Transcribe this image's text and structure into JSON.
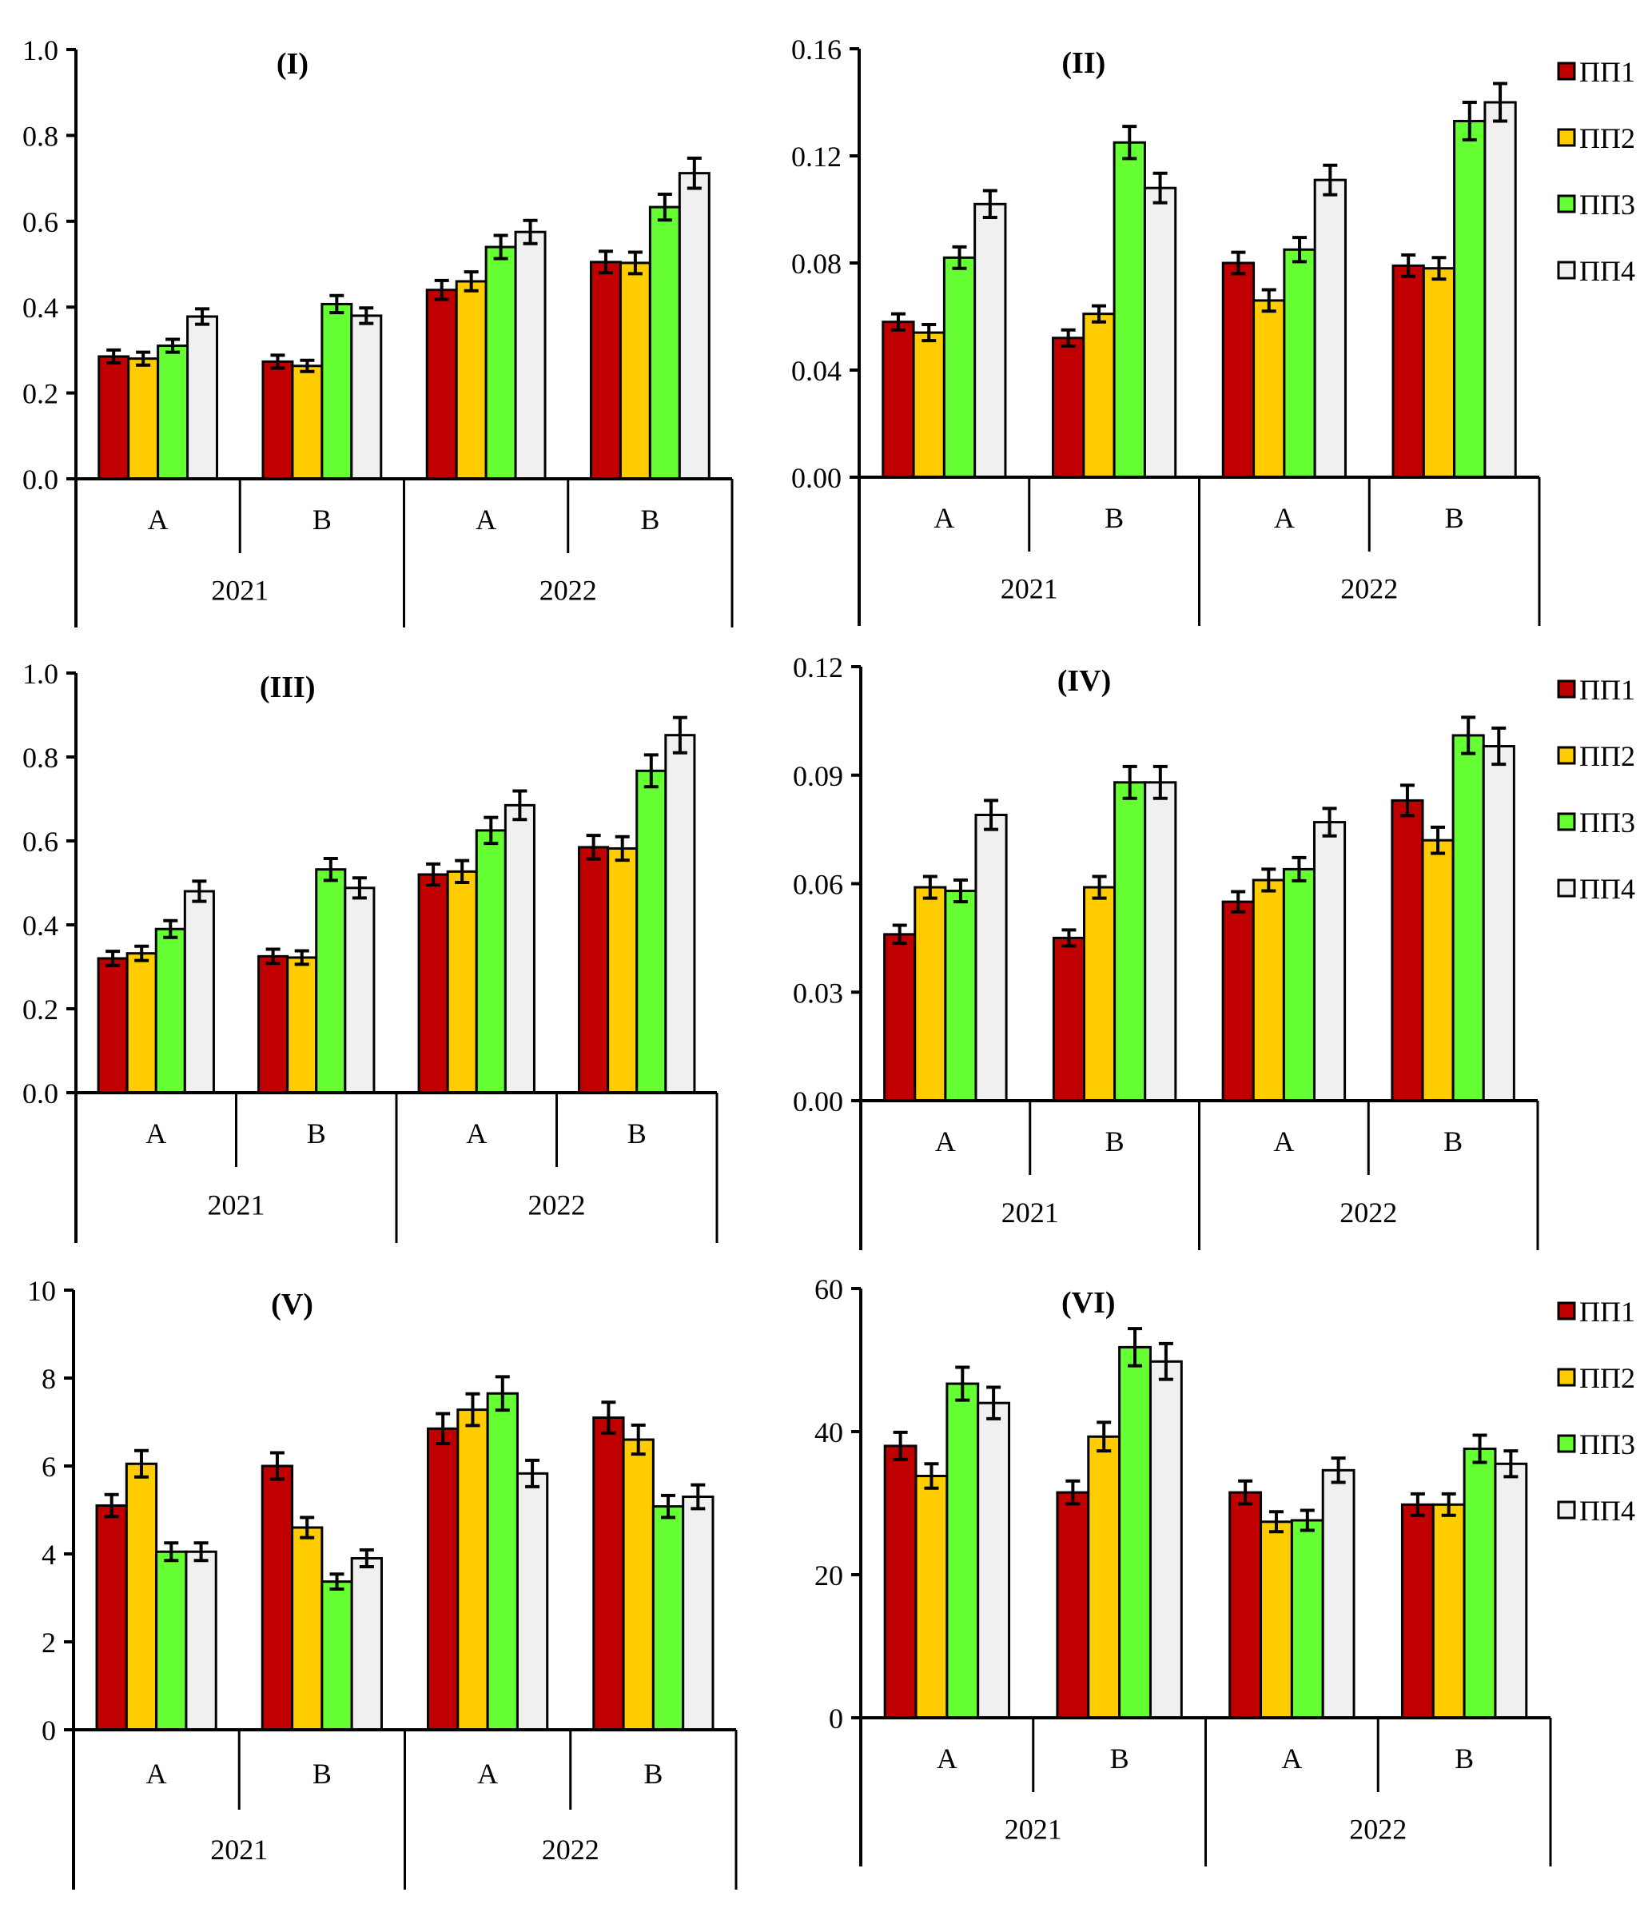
{
  "figure": {
    "series_colors": {
      "ПП1": "#C00000",
      "ПП2": "#FFCC00",
      "ПП3": "#66FF33",
      "ПП4": "#F0F0F0"
    },
    "bar_edge_color": "#000000"
  },
  "chart_data": [
    {
      "type": "bar",
      "title": "(I)",
      "xlabel": "",
      "ylabel": "",
      "ylim": [
        0,
        1.0
      ],
      "yticks": [
        "0.0",
        "0.2",
        "0.4",
        "0.6",
        "0.8",
        "1.0"
      ],
      "ytick_values": [
        0,
        0.2,
        0.4,
        0.6,
        0.8,
        1.0
      ],
      "groups": [
        "2021",
        "2022"
      ],
      "categories": [
        "A",
        "B",
        "A",
        "B"
      ],
      "category_groups": [
        "2021",
        "2021",
        "2022",
        "2022"
      ],
      "series": [
        {
          "name": "ПП1",
          "values": [
            0.285,
            0.273,
            0.44,
            0.505
          ],
          "errors": [
            0.015,
            0.015,
            0.022,
            0.025
          ]
        },
        {
          "name": "ПП2",
          "values": [
            0.28,
            0.263,
            0.46,
            0.503
          ],
          "errors": [
            0.015,
            0.013,
            0.022,
            0.025
          ]
        },
        {
          "name": "ПП3",
          "values": [
            0.31,
            0.407,
            0.54,
            0.633
          ],
          "errors": [
            0.015,
            0.02,
            0.027,
            0.03
          ]
        },
        {
          "name": "ПП4",
          "values": [
            0.378,
            0.38,
            0.575,
            0.712
          ],
          "errors": [
            0.018,
            0.018,
            0.027,
            0.035
          ]
        }
      ],
      "legend": false,
      "grid": false
    },
    {
      "type": "bar",
      "title": "(II)",
      "xlabel": "",
      "ylabel": "",
      "ylim": [
        0,
        0.16
      ],
      "yticks": [
        "0.00",
        "0.04",
        "0.08",
        "0.12",
        "0.16"
      ],
      "ytick_values": [
        0,
        0.04,
        0.08,
        0.12,
        0.16
      ],
      "groups": [
        "2021",
        "2022"
      ],
      "categories": [
        "A",
        "B",
        "A",
        "B"
      ],
      "category_groups": [
        "2021",
        "2021",
        "2022",
        "2022"
      ],
      "series": [
        {
          "name": "ПП1",
          "values": [
            0.058,
            0.052,
            0.08,
            0.079
          ],
          "errors": [
            0.003,
            0.003,
            0.004,
            0.004
          ]
        },
        {
          "name": "ПП2",
          "values": [
            0.054,
            0.061,
            0.066,
            0.078
          ],
          "errors": [
            0.003,
            0.003,
            0.004,
            0.004
          ]
        },
        {
          "name": "ПП3",
          "values": [
            0.082,
            0.125,
            0.085,
            0.133
          ],
          "errors": [
            0.004,
            0.006,
            0.0045,
            0.007
          ]
        },
        {
          "name": "ПП4",
          "values": [
            0.102,
            0.108,
            0.111,
            0.14
          ],
          "errors": [
            0.005,
            0.0055,
            0.0055,
            0.007
          ]
        }
      ],
      "legend": true,
      "legend_position": "right",
      "grid": false
    },
    {
      "type": "bar",
      "title": "(III)",
      "xlabel": "",
      "ylabel": "",
      "ylim": [
        0,
        1.0
      ],
      "yticks": [
        "0.0",
        "0.2",
        "0.4",
        "0.6",
        "0.8",
        "1.0"
      ],
      "ytick_values": [
        0,
        0.2,
        0.4,
        0.6,
        0.8,
        1.0
      ],
      "groups": [
        "2021",
        "2022"
      ],
      "categories": [
        "A",
        "B",
        "A",
        "B"
      ],
      "category_groups": [
        "2021",
        "2021",
        "2022",
        "2022"
      ],
      "series": [
        {
          "name": "ПП1",
          "values": [
            0.32,
            0.325,
            0.52,
            0.585
          ],
          "errors": [
            0.017,
            0.017,
            0.025,
            0.028
          ]
        },
        {
          "name": "ПП2",
          "values": [
            0.332,
            0.322,
            0.527,
            0.582
          ],
          "errors": [
            0.017,
            0.016,
            0.026,
            0.028
          ]
        },
        {
          "name": "ПП3",
          "values": [
            0.39,
            0.532,
            0.625,
            0.767
          ],
          "errors": [
            0.02,
            0.026,
            0.031,
            0.038
          ]
        },
        {
          "name": "ПП4",
          "values": [
            0.48,
            0.488,
            0.685,
            0.852
          ],
          "errors": [
            0.024,
            0.024,
            0.034,
            0.042
          ]
        }
      ],
      "legend": false,
      "grid": false
    },
    {
      "type": "bar",
      "title": "(IV)",
      "xlabel": "",
      "ylabel": "",
      "ylim": [
        0,
        0.12
      ],
      "yticks": [
        "0.00",
        "0.03",
        "0.06",
        "0.09",
        "0.12"
      ],
      "ytick_values": [
        0,
        0.03,
        0.06,
        0.09,
        0.12
      ],
      "groups": [
        "2021",
        "2022"
      ],
      "categories": [
        "A",
        "B",
        "A",
        "B"
      ],
      "category_groups": [
        "2021",
        "2021",
        "2022",
        "2022"
      ],
      "series": [
        {
          "name": "ПП1",
          "values": [
            0.046,
            0.045,
            0.055,
            0.083
          ],
          "errors": [
            0.0025,
            0.0022,
            0.0028,
            0.0042
          ]
        },
        {
          "name": "ПП2",
          "values": [
            0.059,
            0.059,
            0.061,
            0.072
          ],
          "errors": [
            0.003,
            0.003,
            0.003,
            0.0036
          ]
        },
        {
          "name": "ПП3",
          "values": [
            0.058,
            0.088,
            0.064,
            0.101
          ],
          "errors": [
            0.003,
            0.0044,
            0.0032,
            0.005
          ]
        },
        {
          "name": "ПП4",
          "values": [
            0.079,
            0.088,
            0.077,
            0.098
          ],
          "errors": [
            0.004,
            0.0044,
            0.0038,
            0.005
          ]
        }
      ],
      "legend": true,
      "legend_position": "right",
      "grid": false
    },
    {
      "type": "bar",
      "title": "(V)",
      "xlabel": "",
      "ylabel": "",
      "ylim": [
        0,
        10
      ],
      "yticks": [
        "0",
        "2",
        "4",
        "6",
        "8",
        "10"
      ],
      "ytick_values": [
        0,
        2,
        4,
        6,
        8,
        10
      ],
      "groups": [
        "2021",
        "2022"
      ],
      "categories": [
        "A",
        "B",
        "A",
        "B"
      ],
      "category_groups": [
        "2021",
        "2021",
        "2022",
        "2022"
      ],
      "series": [
        {
          "name": "ПП1",
          "values": [
            5.1,
            6.0,
            6.85,
            7.1
          ],
          "errors": [
            0.25,
            0.3,
            0.34,
            0.35
          ]
        },
        {
          "name": "ПП2",
          "values": [
            6.05,
            4.6,
            7.28,
            6.6
          ],
          "errors": [
            0.3,
            0.23,
            0.36,
            0.33
          ]
        },
        {
          "name": "ПП3",
          "values": [
            4.05,
            3.37,
            7.65,
            5.08
          ],
          "errors": [
            0.2,
            0.17,
            0.38,
            0.25
          ]
        },
        {
          "name": "ПП4",
          "values": [
            4.05,
            3.9,
            5.83,
            5.3
          ],
          "errors": [
            0.2,
            0.19,
            0.3,
            0.27
          ]
        }
      ],
      "legend": false,
      "grid": false
    },
    {
      "type": "bar",
      "title": "(VI)",
      "xlabel": "",
      "ylabel": "",
      "ylim": [
        0,
        60
      ],
      "yticks": [
        "0",
        "20",
        "40",
        "60"
      ],
      "ytick_values": [
        0,
        20,
        40,
        60
      ],
      "groups": [
        "2021",
        "2022"
      ],
      "categories": [
        "A",
        "B",
        "A",
        "B"
      ],
      "category_groups": [
        "2021",
        "2021",
        "2022",
        "2022"
      ],
      "series": [
        {
          "name": "ПП1",
          "values": [
            38.0,
            31.5,
            31.5,
            29.8
          ],
          "errors": [
            1.9,
            1.6,
            1.6,
            1.5
          ]
        },
        {
          "name": "ПП2",
          "values": [
            33.8,
            39.3,
            27.4,
            29.8
          ],
          "errors": [
            1.7,
            2.0,
            1.4,
            1.5
          ]
        },
        {
          "name": "ПП3",
          "values": [
            46.7,
            51.8,
            27.6,
            37.6
          ],
          "errors": [
            2.3,
            2.6,
            1.4,
            1.9
          ]
        },
        {
          "name": "ПП4",
          "values": [
            44.0,
            49.8,
            34.6,
            35.5
          ],
          "errors": [
            2.2,
            2.5,
            1.7,
            1.8
          ]
        }
      ],
      "legend": true,
      "legend_position": "right",
      "grid": false
    }
  ]
}
